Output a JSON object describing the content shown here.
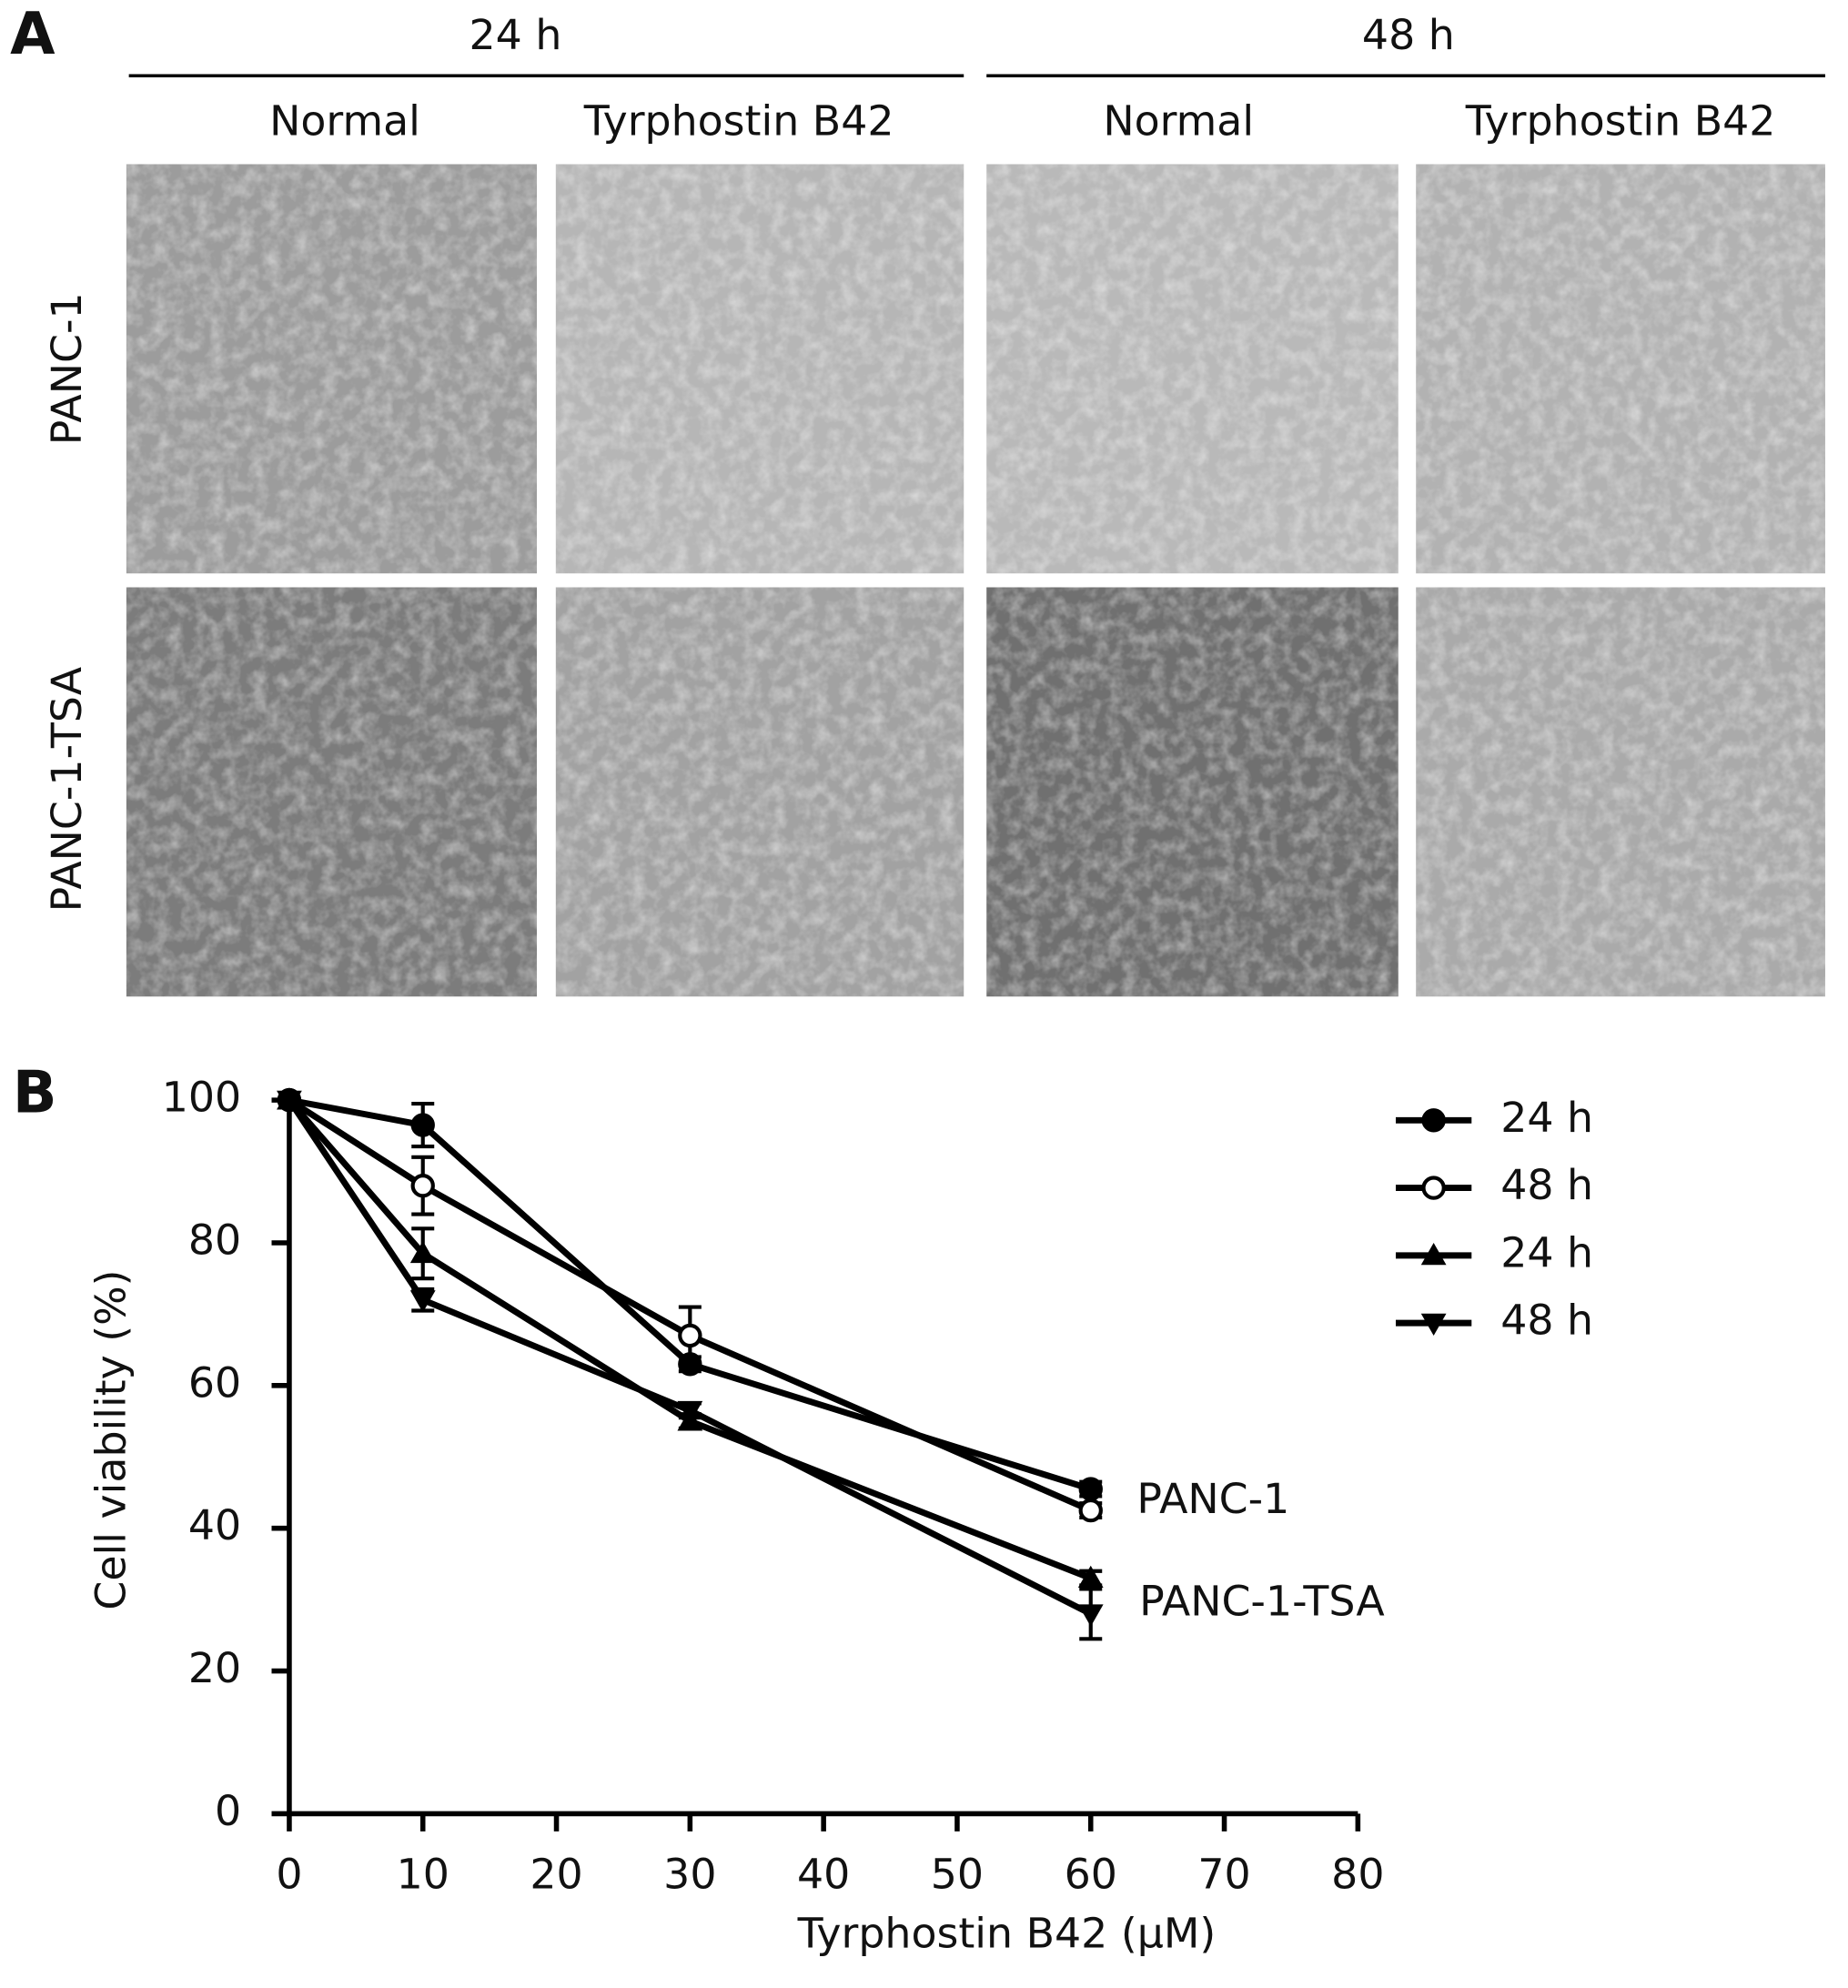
{
  "panel_a": {
    "label": "A",
    "time_headers": [
      "24 h",
      "48 h"
    ],
    "column_headers": [
      "Normal",
      "Tyrphostin B42",
      "Normal",
      "Tyrphostin B42"
    ],
    "row_labels": [
      "PANC-1",
      "PANC-1-TSA"
    ]
  },
  "panel_b": {
    "label": "B"
  },
  "chart_data": {
    "type": "line",
    "x_label": "Tyrphostin B42 (μM)",
    "y_label": "Cell viability (%)",
    "x": [
      0,
      10,
      30,
      60
    ],
    "series": [
      {
        "name": "24 h",
        "color": "#000000",
        "marker": "circle",
        "values": [
          100,
          96.5,
          63,
          45.5
        ],
        "errors": [
          0,
          3,
          1,
          1
        ]
      },
      {
        "name": "48 h",
        "color": "#000000",
        "marker": "circle-open",
        "values": [
          100,
          88,
          67,
          42.5
        ],
        "errors": [
          0,
          4,
          4,
          1
        ]
      },
      {
        "name": "24 h",
        "color": "#000000",
        "marker": "triangle-up",
        "values": [
          100,
          78.5,
          55,
          33
        ],
        "errors": [
          0,
          3.5,
          1,
          1
        ]
      },
      {
        "name": "48 h",
        "color": "#000000",
        "marker": "triangle-down",
        "values": [
          100,
          72,
          56.5,
          28
        ],
        "errors": [
          0,
          1.5,
          1,
          3.5
        ]
      }
    ],
    "annotations": [
      "PANC-1",
      "PANC-1-TSA"
    ],
    "xlim": [
      0,
      80
    ],
    "xticks": [
      0,
      10,
      20,
      30,
      40,
      50,
      60,
      70,
      80
    ],
    "ylim": [
      0,
      100
    ],
    "yticks": [
      0,
      20,
      40,
      60,
      80,
      100
    ],
    "legend": "upper right",
    "grid": false
  }
}
